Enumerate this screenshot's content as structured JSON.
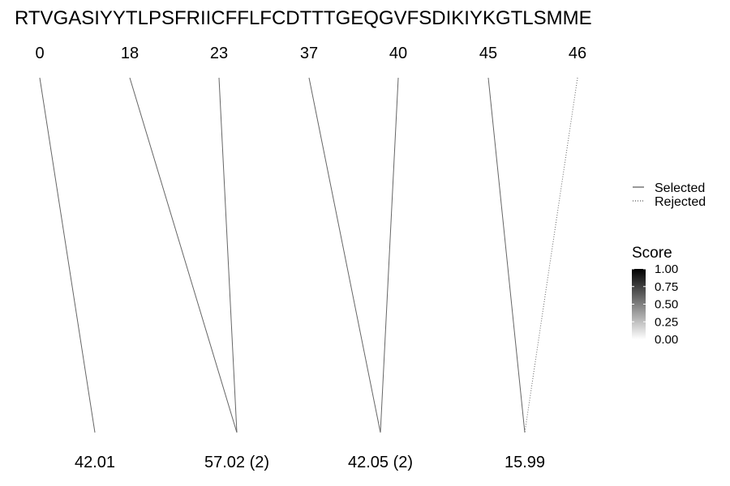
{
  "sequence": "RTVGASIYYTLPSFRIICFFLFCDTTTGEQGVFSDIKIYKGTLSMME",
  "top_labels": [
    "0",
    "18",
    "23",
    "37",
    "40",
    "45",
    "46"
  ],
  "bottom_labels": [
    "42.01",
    "57.02 (2)",
    "42.05 (2)",
    "15.99"
  ],
  "connections": [
    {
      "from": 0,
      "to": 0,
      "status": "selected",
      "score": 0.6
    },
    {
      "from": 1,
      "to": 1,
      "status": "selected",
      "score": 0.6
    },
    {
      "from": 2,
      "to": 1,
      "status": "selected",
      "score": 0.6
    },
    {
      "from": 3,
      "to": 2,
      "status": "selected",
      "score": 0.6
    },
    {
      "from": 4,
      "to": 2,
      "status": "selected",
      "score": 0.6
    },
    {
      "from": 5,
      "to": 3,
      "status": "selected",
      "score": 0.6
    },
    {
      "from": 6,
      "to": 3,
      "status": "rejected",
      "score": 0.6
    }
  ],
  "legend": {
    "line_types": [
      {
        "label": "Selected",
        "style": "solid"
      },
      {
        "label": "Rejected",
        "style": "dotted"
      }
    ],
    "score": {
      "title": "Score",
      "ticks": [
        "1.00",
        "0.75",
        "0.50",
        "0.25",
        "0.00"
      ],
      "low_color": "#ffffff",
      "high_color": "#000000"
    }
  }
}
